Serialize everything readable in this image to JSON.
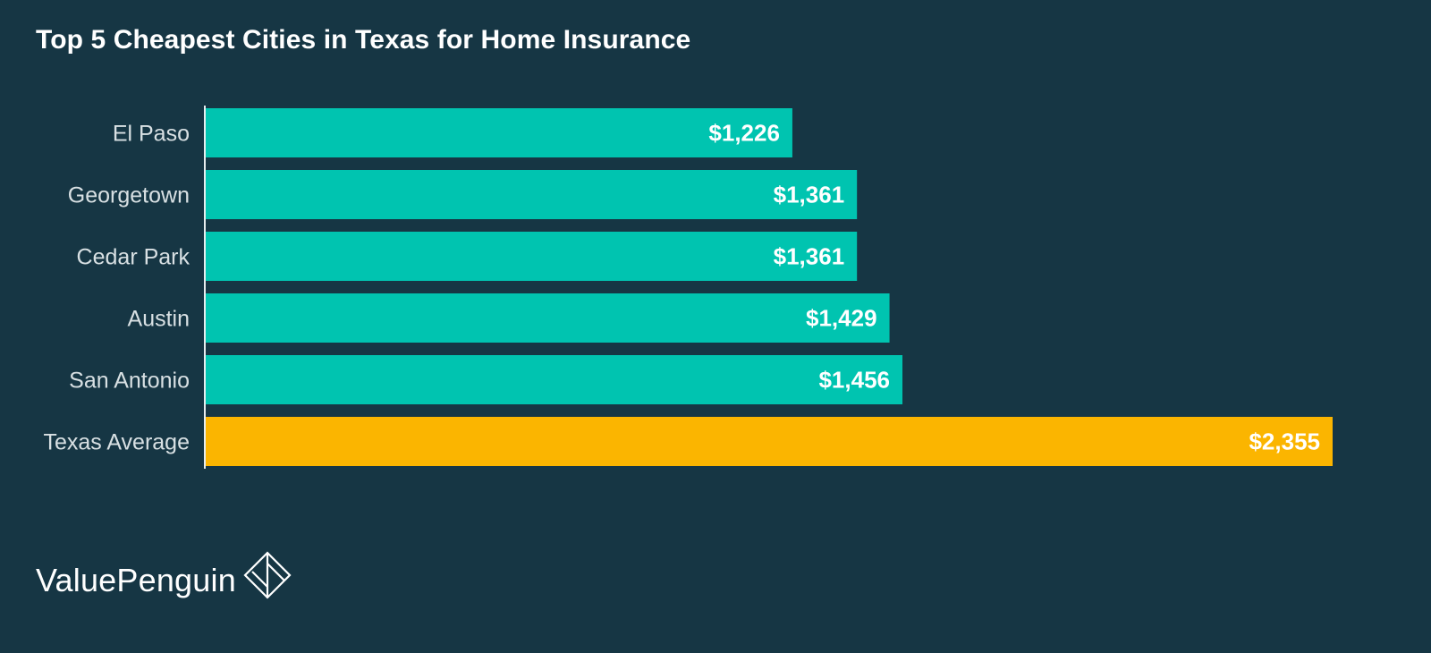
{
  "chart_data": {
    "type": "bar",
    "orientation": "horizontal",
    "title": "Top 5 Cheapest Cities in Texas for Home Insurance",
    "xlabel": "",
    "ylabel": "",
    "categories": [
      "El Paso",
      "Georgetown",
      "Cedar Park",
      "Austin",
      "San Antonio",
      "Texas Average"
    ],
    "values": [
      1226,
      1361,
      1361,
      1429,
      1456,
      2355
    ],
    "value_labels": [
      "$1,226",
      "$1,361",
      "$1,361",
      "$1,429",
      "$1,456",
      "$2,355"
    ],
    "xlim": [
      0,
      2355
    ],
    "grid": false,
    "legend": "none",
    "colors": {
      "background": "#163644",
      "bar": "#00c4b0",
      "highlight_bar": "#fbb500",
      "category_text": "#d8e0e3",
      "value_text": "#ffffff",
      "axis_line": "#e6ecee"
    },
    "highlight_category": "Texas Average"
  },
  "brand": {
    "name": "ValuePenguin",
    "logo_icon": "diamond-logo-icon"
  }
}
